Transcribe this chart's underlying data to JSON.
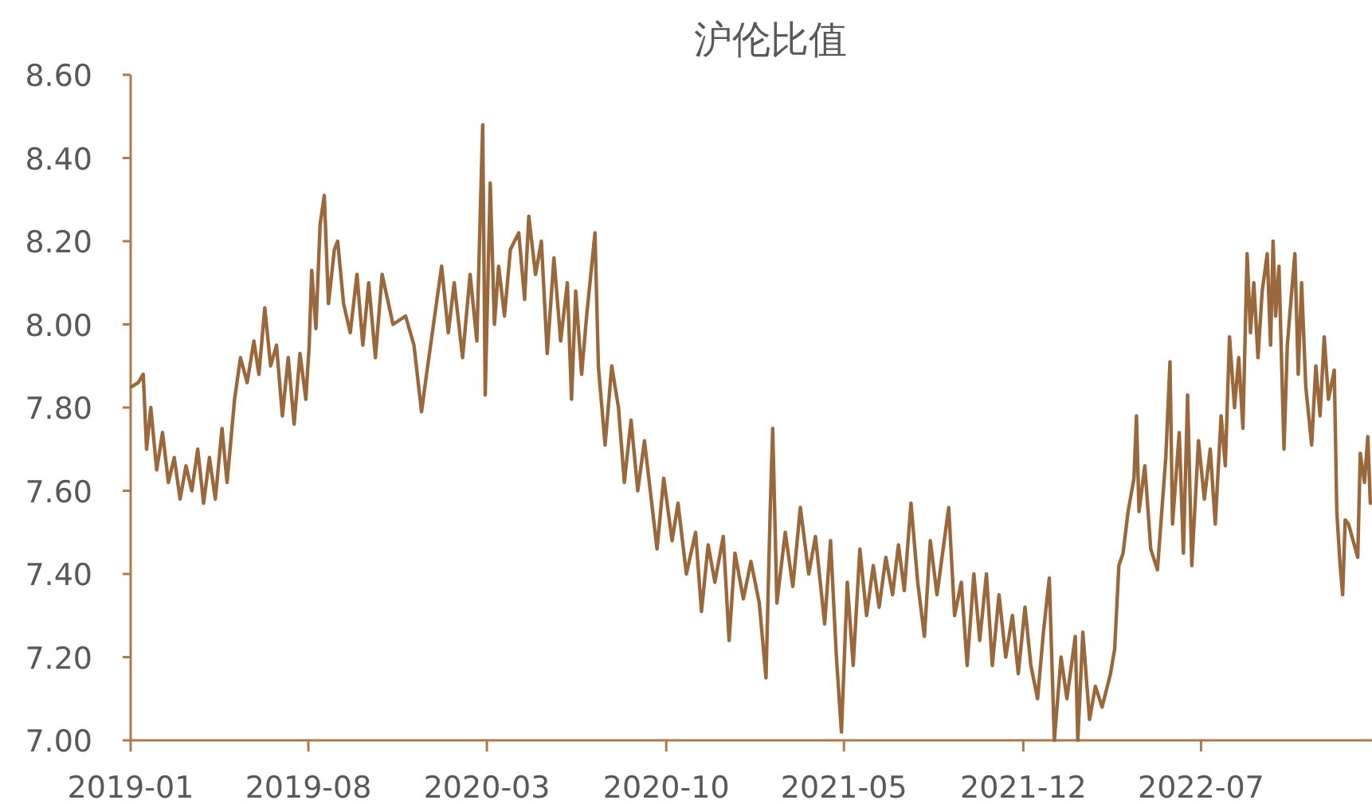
{
  "chart_data": {
    "type": "line",
    "title": "沪伦比值",
    "color": "#9a683a",
    "xlim": [
      "2019-01-01",
      "2023-01-21"
    ],
    "xticks": [
      "2019-01",
      "2019-08",
      "2020-03",
      "2020-10",
      "2021-05",
      "2021-12",
      "2022-07"
    ],
    "ylim": [
      7.0,
      8.6
    ],
    "yticks": [
      {
        "value": 7.0,
        "label": "7.00"
      },
      {
        "value": 7.2,
        "label": "7.20"
      },
      {
        "value": 7.4,
        "label": "7.40"
      },
      {
        "value": 7.6,
        "label": "7.60"
      },
      {
        "value": 7.8,
        "label": "7.80"
      },
      {
        "value": 8.0,
        "label": "8.00"
      },
      {
        "value": 8.2,
        "label": "8.20"
      },
      {
        "value": 8.4,
        "label": "8.40"
      },
      {
        "value": 8.6,
        "label": "8.60"
      }
    ],
    "grid": false,
    "marker": "none",
    "line_style": "solid",
    "x": [
      "2019-01-02",
      "2019-01-10",
      "2019-01-16",
      "2019-01-20",
      "2019-01-25",
      "2019-02-01",
      "2019-02-08",
      "2019-02-15",
      "2019-02-22",
      "2019-03-01",
      "2019-03-08",
      "2019-03-15",
      "2019-03-22",
      "2019-03-29",
      "2019-04-05",
      "2019-04-12",
      "2019-04-20",
      "2019-04-26",
      "2019-05-05",
      "2019-05-12",
      "2019-05-20",
      "2019-05-28",
      "2019-06-03",
      "2019-06-10",
      "2019-06-17",
      "2019-06-24",
      "2019-07-01",
      "2019-07-08",
      "2019-07-15",
      "2019-07-22",
      "2019-07-29",
      "2019-08-02",
      "2019-08-05",
      "2019-08-10",
      "2019-08-15",
      "2019-08-20",
      "2019-08-25",
      "2019-09-01",
      "2019-09-05",
      "2019-09-12",
      "2019-09-20",
      "2019-09-28",
      "2019-10-05",
      "2019-10-12",
      "2019-10-20",
      "2019-10-28",
      "2019-11-10",
      "2019-11-25",
      "2019-12-05",
      "2019-12-14",
      "2019-12-20",
      "2020-01-07",
      "2020-01-15",
      "2020-01-22",
      "2020-02-01",
      "2020-02-10",
      "2020-02-18",
      "2020-02-25",
      "2020-02-28",
      "2020-03-05",
      "2020-03-10",
      "2020-03-15",
      "2020-03-22",
      "2020-03-29",
      "2020-04-08",
      "2020-04-15",
      "2020-04-20",
      "2020-04-28",
      "2020-05-05",
      "2020-05-12",
      "2020-05-20",
      "2020-05-28",
      "2020-06-05",
      "2020-06-10",
      "2020-06-15",
      "2020-06-22",
      "2020-06-28",
      "2020-07-08",
      "2020-07-12",
      "2020-07-20",
      "2020-07-28",
      "2020-08-05",
      "2020-08-12",
      "2020-08-20",
      "2020-08-28",
      "2020-09-05",
      "2020-09-20",
      "2020-09-28",
      "2020-10-08",
      "2020-10-15",
      "2020-10-25",
      "2020-11-05",
      "2020-11-12",
      "2020-11-20",
      "2020-11-28",
      "2020-12-08",
      "2020-12-15",
      "2020-12-22",
      "2021-01-01",
      "2021-01-10",
      "2021-01-20",
      "2021-01-28",
      "2021-02-02",
      "2021-02-05",
      "2021-02-10",
      "2021-02-20",
      "2021-03-01",
      "2021-03-10",
      "2021-03-20",
      "2021-03-28",
      "2021-04-08",
      "2021-04-15",
      "2021-04-22",
      "2021-04-28",
      "2021-05-05",
      "2021-05-12",
      "2021-05-20",
      "2021-05-28",
      "2021-06-05",
      "2021-06-12",
      "2021-06-20",
      "2021-06-28",
      "2021-07-05",
      "2021-07-12",
      "2021-07-20",
      "2021-07-28",
      "2021-08-05",
      "2021-08-12",
      "2021-08-20",
      "2021-09-03",
      "2021-09-10",
      "2021-09-18",
      "2021-09-25",
      "2021-10-03",
      "2021-10-10",
      "2021-10-18",
      "2021-10-25",
      "2021-11-02",
      "2021-11-10",
      "2021-11-18",
      "2021-11-25",
      "2021-12-03",
      "2021-12-10",
      "2021-12-18",
      "2021-12-25",
      "2022-01-01",
      "2022-01-07",
      "2022-01-15",
      "2022-01-22",
      "2022-02-01",
      "2022-02-04",
      "2022-02-10",
      "2022-02-18",
      "2022-02-25",
      "2022-03-05",
      "2022-03-15",
      "2022-03-20",
      "2022-03-25",
      "2022-03-30",
      "2022-04-05",
      "2022-04-12",
      "2022-04-15",
      "2022-04-18",
      "2022-04-25",
      "2022-05-02",
      "2022-05-10",
      "2022-05-20",
      "2022-05-25",
      "2022-05-28",
      "2022-06-05",
      "2022-06-10",
      "2022-06-15",
      "2022-06-20",
      "2022-06-28",
      "2022-07-05",
      "2022-07-12",
      "2022-07-18",
      "2022-07-25",
      "2022-07-30",
      "2022-08-04",
      "2022-08-10",
      "2022-08-15",
      "2022-08-20",
      "2022-08-25",
      "2022-08-29",
      "2022-09-02",
      "2022-09-07",
      "2022-09-12",
      "2022-09-18",
      "2022-09-22",
      "2022-09-25",
      "2022-09-28",
      "2022-10-02",
      "2022-10-08",
      "2022-10-12",
      "2022-10-16",
      "2022-10-21",
      "2022-10-25",
      "2022-10-29",
      "2022-11-03",
      "2022-11-10",
      "2022-11-15",
      "2022-11-20",
      "2022-11-25",
      "2022-11-30",
      "2022-12-07",
      "2022-12-10",
      "2022-12-14",
      "2022-12-17",
      "2022-12-20",
      "2022-12-24",
      "2023-01-04",
      "2023-01-07",
      "2023-01-12",
      "2023-01-16",
      "2023-01-19"
    ],
    "values": [
      7.85,
      7.86,
      7.88,
      7.7,
      7.8,
      7.65,
      7.74,
      7.62,
      7.68,
      7.58,
      7.66,
      7.6,
      7.7,
      7.57,
      7.68,
      7.58,
      7.75,
      7.62,
      7.82,
      7.92,
      7.86,
      7.96,
      7.88,
      8.04,
      7.9,
      7.95,
      7.78,
      7.92,
      7.76,
      7.93,
      7.82,
      7.95,
      8.13,
      7.99,
      8.24,
      8.31,
      8.05,
      8.18,
      8.2,
      8.05,
      7.98,
      8.12,
      7.95,
      8.1,
      7.92,
      8.12,
      8.0,
      8.02,
      7.95,
      7.79,
      7.88,
      8.14,
      7.98,
      8.1,
      7.92,
      8.12,
      7.96,
      8.48,
      7.83,
      8.34,
      8.0,
      8.14,
      8.02,
      8.18,
      8.22,
      8.06,
      8.26,
      8.12,
      8.2,
      7.93,
      8.16,
      7.96,
      8.1,
      7.82,
      8.08,
      7.88,
      8.02,
      8.22,
      7.9,
      7.71,
      7.9,
      7.8,
      7.62,
      7.77,
      7.6,
      7.72,
      7.46,
      7.63,
      7.48,
      7.57,
      7.4,
      7.5,
      7.31,
      7.47,
      7.38,
      7.49,
      7.24,
      7.45,
      7.34,
      7.43,
      7.33,
      7.15,
      7.55,
      7.75,
      7.33,
      7.5,
      7.37,
      7.56,
      7.4,
      7.49,
      7.28,
      7.48,
      7.2,
      7.02,
      7.38,
      7.18,
      7.46,
      7.3,
      7.42,
      7.32,
      7.44,
      7.35,
      7.47,
      7.36,
      7.57,
      7.38,
      7.25,
      7.48,
      7.35,
      7.56,
      7.3,
      7.38,
      7.18,
      7.4,
      7.24,
      7.4,
      7.18,
      7.35,
      7.2,
      7.3,
      7.16,
      7.32,
      7.18,
      7.1,
      7.26,
      7.39,
      7.0,
      7.2,
      7.1,
      7.25,
      7.0,
      7.26,
      7.05,
      7.13,
      7.08,
      7.16,
      7.22,
      7.42,
      7.45,
      7.55,
      7.63,
      7.78,
      7.55,
      7.66,
      7.46,
      7.41,
      7.68,
      7.91,
      7.52,
      7.74,
      7.45,
      7.83,
      7.42,
      7.72,
      7.58,
      7.7,
      7.52,
      7.78,
      7.66,
      7.97,
      7.8,
      7.92,
      7.75,
      8.17,
      7.98,
      8.1,
      7.92,
      8.08,
      8.17,
      7.95,
      8.2,
      8.02,
      8.14,
      7.7,
      7.95,
      8.05,
      8.17,
      7.88,
      8.1,
      7.85,
      7.71,
      7.9,
      7.78,
      7.97,
      7.82,
      7.89,
      7.55,
      7.42,
      7.35,
      7.53,
      7.52,
      7.44,
      7.69,
      7.62,
      7.73,
      7.57
    ]
  }
}
